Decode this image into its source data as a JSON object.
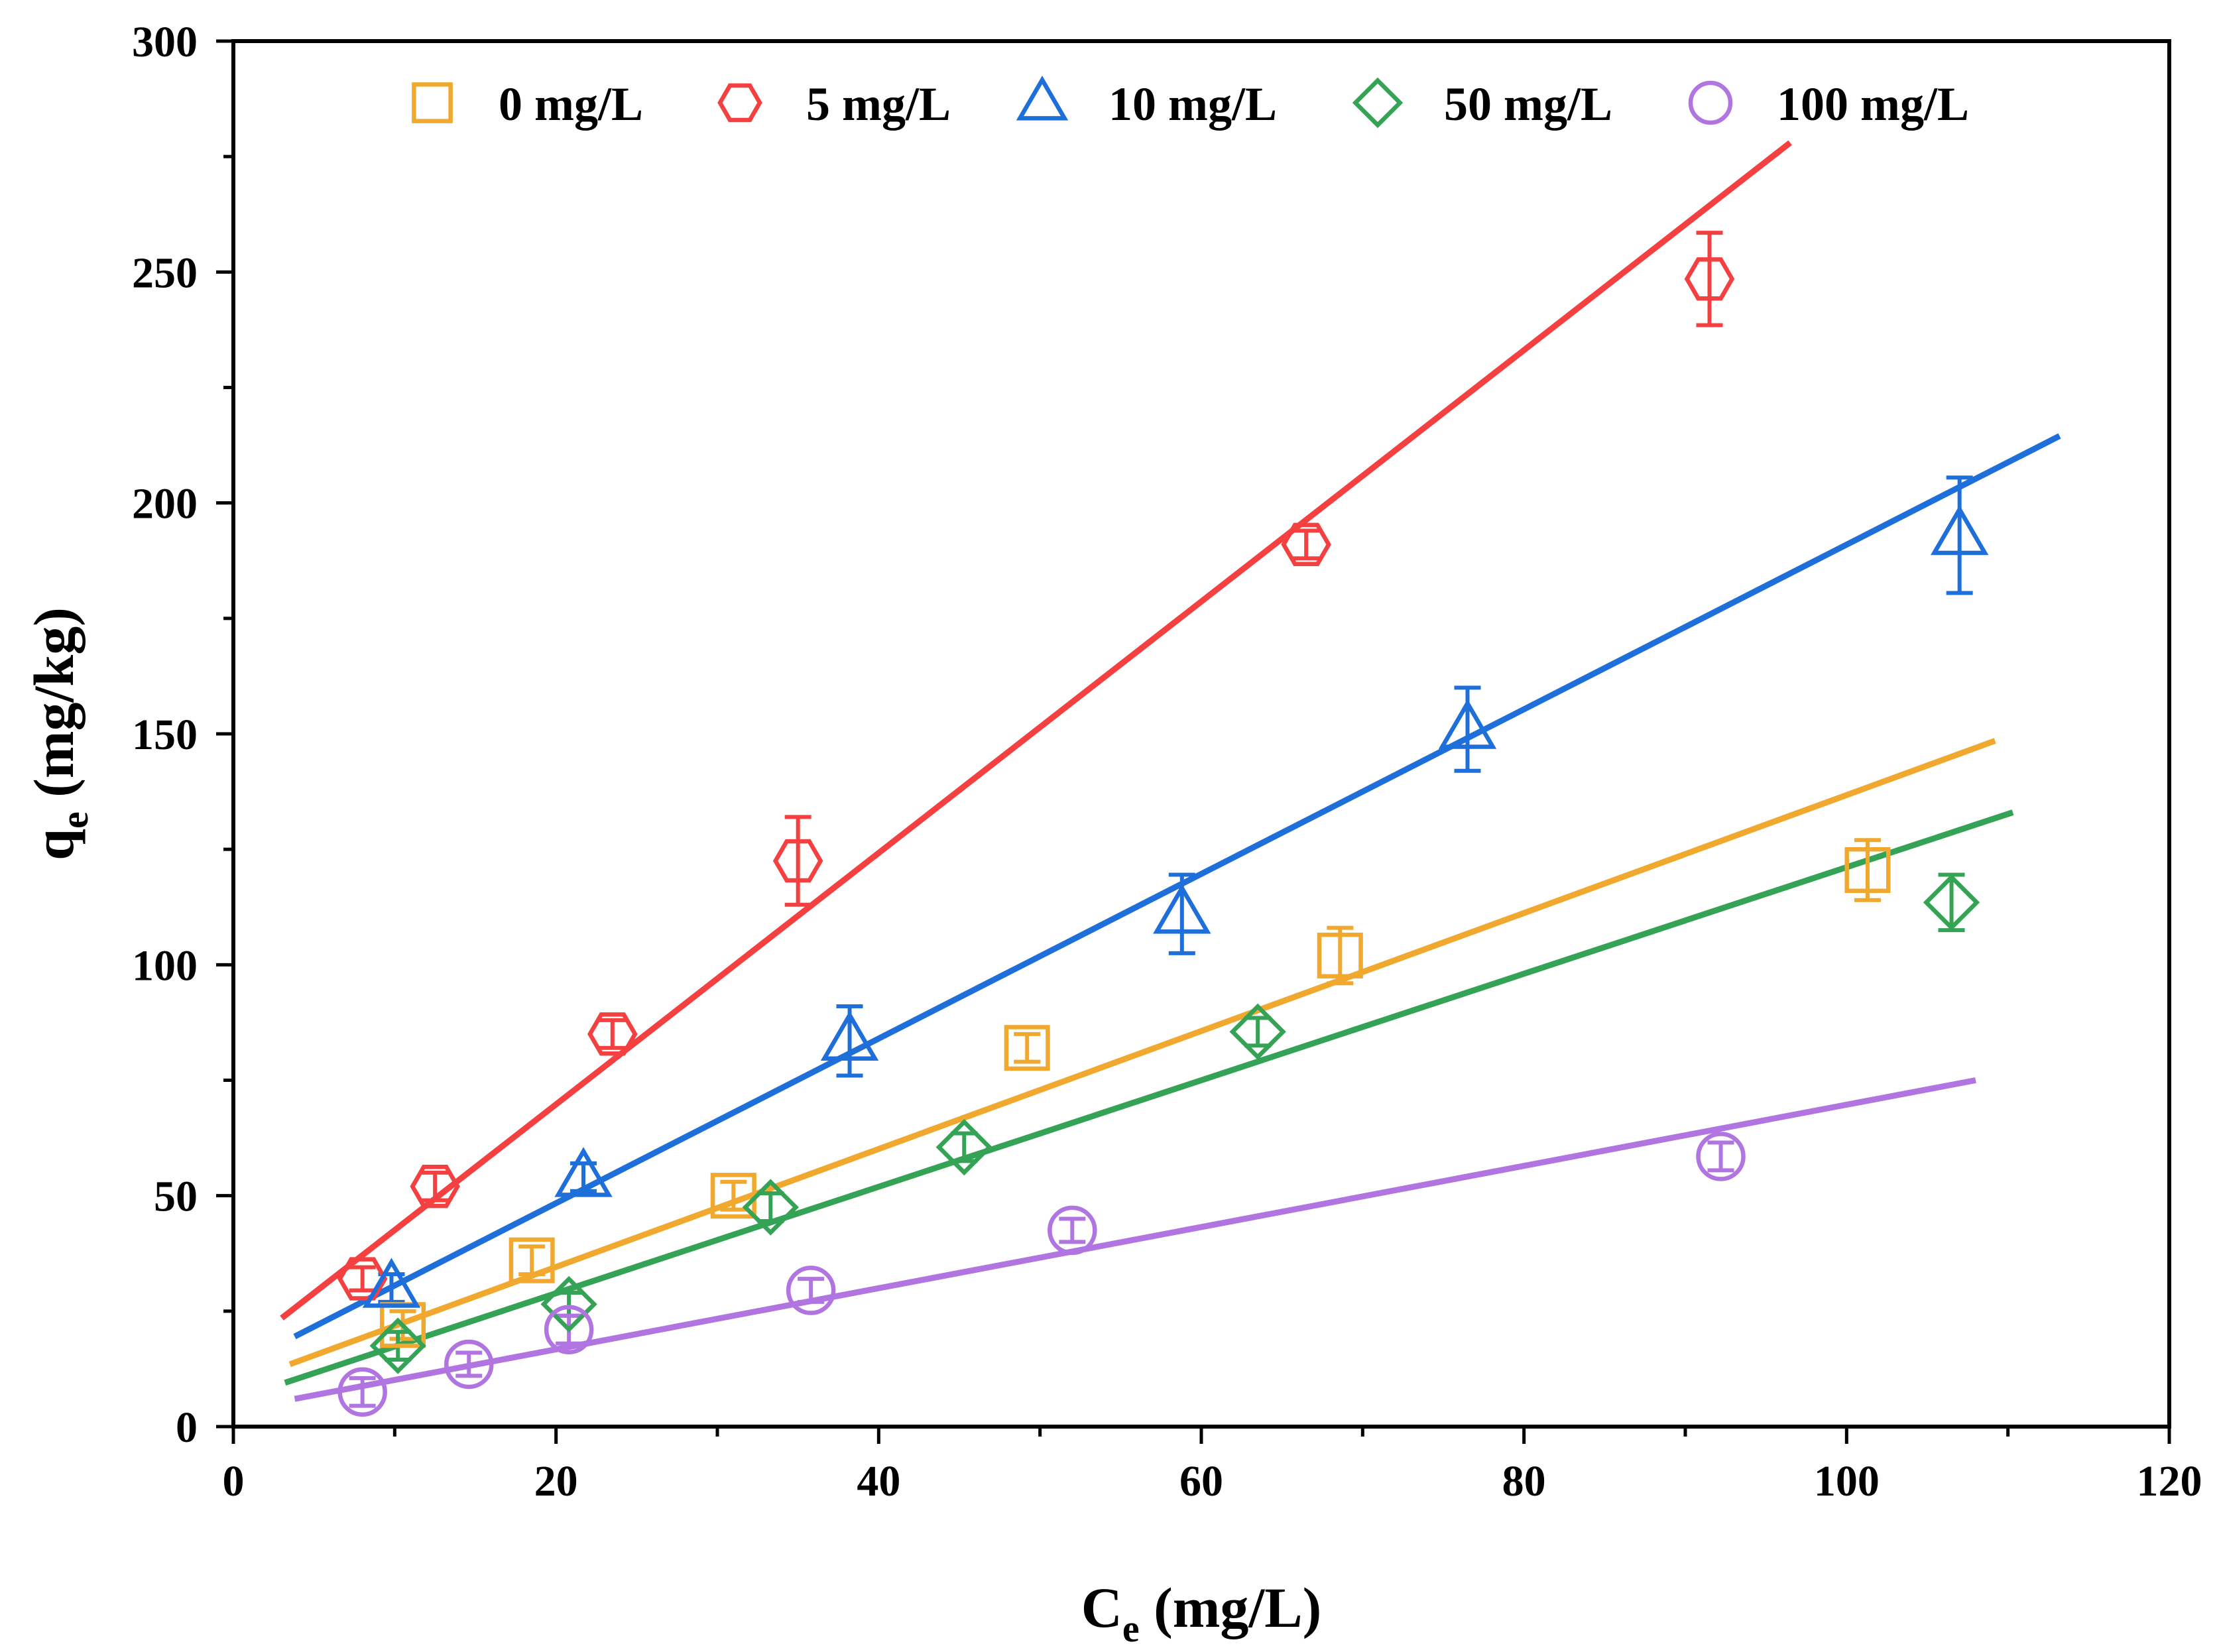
{
  "chart_data": {
    "type": "scatter",
    "title": "",
    "xlabel": {
      "main": "C",
      "sub": "e",
      "unit": " (mg/L)"
    },
    "ylabel": {
      "main": "q",
      "sub": "e",
      "unit": " (mg/kg)"
    },
    "xlim": [
      0,
      120
    ],
    "ylim": [
      0,
      300
    ],
    "xticks": [
      0,
      20,
      40,
      60,
      80,
      100,
      120
    ],
    "yticks": [
      0,
      50,
      100,
      150,
      200,
      250,
      300
    ],
    "xtick_labels": [
      "0",
      "20",
      "40",
      "60",
      "80",
      "100",
      "120"
    ],
    "ytick_labels": [
      "0",
      "50",
      "100",
      "150",
      "200",
      "250",
      "300"
    ],
    "grid": false,
    "legend_position": "top",
    "series": [
      {
        "name": "0 mg/L",
        "color": "#F0A92E",
        "marker": "square",
        "points": [
          {
            "x": 10.5,
            "y": 22,
            "err": 3
          },
          {
            "x": 18.5,
            "y": 36,
            "err": 3
          },
          {
            "x": 31,
            "y": 50,
            "err": 3
          },
          {
            "x": 49.2,
            "y": 82,
            "err": 3
          },
          {
            "x": 68.6,
            "y": 102,
            "err": 6
          },
          {
            "x": 101.3,
            "y": 120.5,
            "err": 6.5
          }
        ],
        "fit": {
          "x": [
            3.5,
            109.2
          ],
          "y": [
            13.5,
            148.5
          ]
        }
      },
      {
        "name": "5 mg/L",
        "color": "#F44040",
        "marker": "hexagon",
        "points": [
          {
            "x": 8,
            "y": 32,
            "err": 2.5
          },
          {
            "x": 12.5,
            "y": 52,
            "err": 3
          },
          {
            "x": 23.5,
            "y": 85,
            "err": 3
          },
          {
            "x": 35,
            "y": 122.5,
            "err": 9.5
          },
          {
            "x": 66.5,
            "y": 191,
            "err": 3
          },
          {
            "x": 91.5,
            "y": 248.5,
            "err": 10
          }
        ],
        "fit": {
          "x": [
            3,
            96.5
          ],
          "y": [
            23.5,
            278
          ]
        }
      },
      {
        "name": "10 mg/L",
        "color": "#1E6FD9",
        "marker": "triangle",
        "points": [
          {
            "x": 9.8,
            "y": 30,
            "err": 3
          },
          {
            "x": 21.7,
            "y": 54,
            "err": 3
          },
          {
            "x": 38.2,
            "y": 83.5,
            "err": 7.5
          },
          {
            "x": 58.8,
            "y": 111,
            "err": 8.5
          },
          {
            "x": 76.5,
            "y": 151,
            "err": 9
          },
          {
            "x": 107,
            "y": 193,
            "err": 12.5
          }
        ],
        "fit": {
          "x": [
            3.8,
            113.2
          ],
          "y": [
            19.5,
            214.5
          ]
        }
      },
      {
        "name": "50 mg/L",
        "color": "#35A356",
        "marker": "diamond",
        "points": [
          {
            "x": 10.2,
            "y": 17.5,
            "err": 3
          },
          {
            "x": 20.8,
            "y": 26.5,
            "err": 2.5
          },
          {
            "x": 33.3,
            "y": 47.5,
            "err": 3
          },
          {
            "x": 45.3,
            "y": 60.5,
            "err": 3
          },
          {
            "x": 63.5,
            "y": 85.5,
            "err": 3
          },
          {
            "x": 106.5,
            "y": 113.5,
            "err": 6
          }
        ],
        "fit": {
          "x": [
            3.2,
            110.3
          ],
          "y": [
            9.5,
            133
          ]
        }
      },
      {
        "name": "100 mg/L",
        "color": "#B075E0",
        "marker": "circle",
        "points": [
          {
            "x": 8,
            "y": 7.5,
            "err": 3
          },
          {
            "x": 14.6,
            "y": 13.5,
            "err": 2.5
          },
          {
            "x": 20.8,
            "y": 21,
            "err": 3
          },
          {
            "x": 35.8,
            "y": 29.5,
            "err": 2.5
          },
          {
            "x": 52,
            "y": 42.5,
            "err": 2.5
          },
          {
            "x": 92.2,
            "y": 58.5,
            "err": 3
          }
        ],
        "fit": {
          "x": [
            3.8,
            108
          ],
          "y": [
            6,
            75
          ]
        }
      }
    ]
  }
}
